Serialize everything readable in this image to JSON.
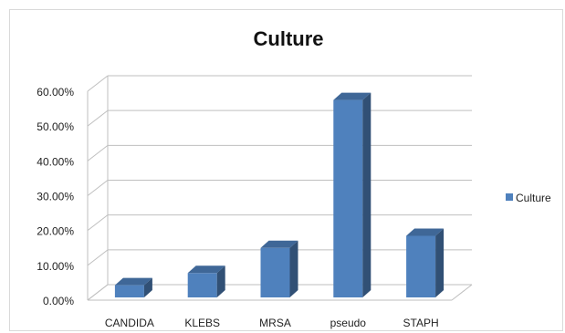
{
  "chart_data": {
    "type": "bar",
    "title": "Culture",
    "categories": [
      "CANDIDA",
      "KLEBS",
      "MRSA",
      "pseudo",
      "STAPH"
    ],
    "series": [
      {
        "name": "Culture",
        "values": [
          3.5,
          7.0,
          14.2,
          56.7,
          17.7
        ],
        "color": "#4f81bd"
      }
    ],
    "y_ticks": [
      "0.00%",
      "10.00%",
      "20.00%",
      "30.00%",
      "40.00%",
      "50.00%",
      "60.00%"
    ],
    "ylim": [
      0,
      60
    ],
    "grid": true,
    "legend_position": "right",
    "style": "3d-column"
  }
}
